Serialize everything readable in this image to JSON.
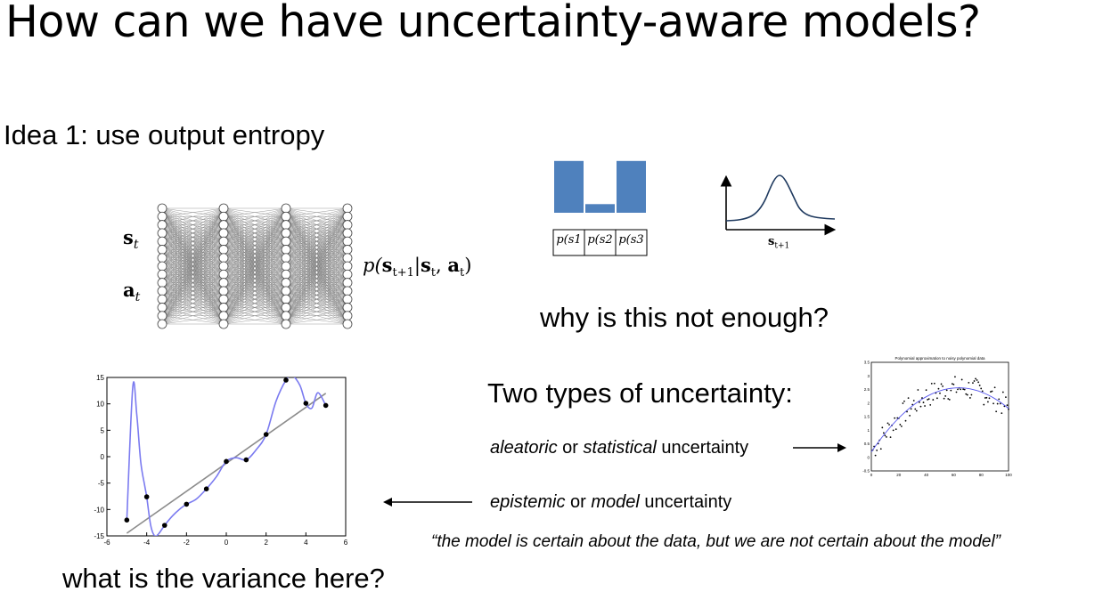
{
  "slide": {
    "title": "How can we have uncertainty-aware models?",
    "idea": "Idea 1: use output entropy",
    "why": "why is this not enough?",
    "two_types": "Two types of uncertainty:",
    "aleatoric": {
      "em1": "aleatoric",
      "mid": " or ",
      "em2": "statistical",
      "tail": " uncertainty"
    },
    "epistemic": {
      "em1": "epistemic",
      "mid": " or ",
      "em2": "model",
      "tail": " uncertainty"
    },
    "quote": "“the model is certain about the data, but we are not certain about the model”",
    "variance": "what is the variance here?"
  },
  "network": {
    "input_s": "s",
    "input_s_sub": "t",
    "input_a": "a",
    "input_a_sub": "t",
    "output": "p(s_{t+1}|s_t, a_t)",
    "output_parts": {
      "p": "p(",
      "s": "s",
      "sub1": "t+1",
      "bar": "|",
      "s2": "s",
      "sub2": "t",
      "comma": ", ",
      "a": "a",
      "sub3": "t",
      "close": ")"
    }
  },
  "discrete_dist": {
    "labels": [
      "p(s1",
      "p(s2",
      "p(s3"
    ],
    "values": [
      0.9,
      0.15,
      0.9
    ],
    "color": "#4f81bd"
  },
  "continuous_dist": {
    "xlabel_main": "s",
    "xlabel_sub": "t+1",
    "color": "#1f3a5f"
  },
  "chart_data": [
    {
      "type": "line",
      "title": "",
      "xlabel": "",
      "ylabel": "",
      "xlim": [
        -6,
        6
      ],
      "ylim": [
        -15,
        15
      ],
      "xticks": [
        "-6",
        "-4",
        "-2",
        "0",
        "2",
        "4",
        "6"
      ],
      "yticks": [
        "-15",
        "-10",
        "-5",
        "0",
        "5",
        "10",
        "15"
      ],
      "points": {
        "x": [
          -5,
          -4,
          -3.1,
          -2,
          -1,
          0,
          1,
          2,
          3,
          4,
          5
        ],
        "y": [
          -12,
          -7.6,
          -13,
          -9,
          -6.1,
          -0.9,
          -0.6,
          4.2,
          14.5,
          10.1,
          9.7
        ]
      },
      "fit_line": {
        "x": [
          -5,
          5
        ],
        "y": [
          -14.5,
          12
        ]
      },
      "interp_curve": {
        "x": [
          -5,
          -4.7,
          -4.5,
          -4.3,
          -4.1,
          -4,
          -3.8,
          -3.6,
          -3.4,
          -3.1,
          -2.7,
          -2.3,
          -2,
          -1.5,
          -1,
          -0.5,
          0,
          0.5,
          1,
          1.5,
          2,
          2.5,
          3,
          3.3,
          3.7,
          4,
          4.3,
          4.6,
          5
        ],
        "y": [
          -12,
          13.2,
          8,
          -1,
          -5.5,
          -7.6,
          -13,
          -15,
          -14.6,
          -13,
          -11.2,
          -9.8,
          -9,
          -8,
          -6.1,
          -3.8,
          -0.9,
          -0.2,
          -0.6,
          1.3,
          4.2,
          10.5,
          14.5,
          15.4,
          13.5,
          10.1,
          9.2,
          12.1,
          9.7
        ]
      },
      "colors": {
        "curve": "#7b7bf0",
        "line": "#8c8c8c",
        "points": "#000000"
      }
    },
    {
      "type": "scatter",
      "title": "Polynomial approximation to noisy polynomial data",
      "xlim": [
        0,
        100
      ],
      "ylim": [
        -0.5,
        3.5
      ],
      "xticks": [
        "0",
        "20",
        "40",
        "60",
        "80",
        "100"
      ],
      "yticks": [
        "-0.5",
        "0",
        "0.5",
        "1",
        "1.5",
        "2",
        "2.5",
        "3",
        "3.5"
      ],
      "colors": {
        "curve": "#5555ee",
        "points": "#000000"
      }
    }
  ]
}
